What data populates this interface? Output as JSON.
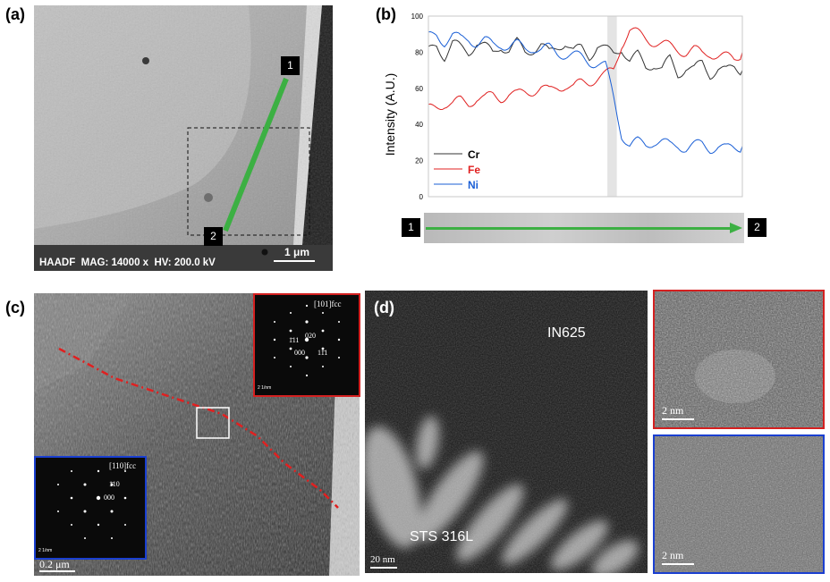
{
  "panel_a": {
    "letter": "(a)",
    "footer": "HAADF  MAG: 14000 x  HV: 200.0 kV",
    "scale": "1 μm",
    "marker_1": "1",
    "marker_2": "2"
  },
  "panel_b": {
    "letter": "(b)",
    "marker_1": "1",
    "marker_2": "2"
  },
  "chart_data": {
    "type": "line",
    "xlabel": "",
    "ylabel": "Intensity (A.U.)",
    "ylim": [
      0,
      100
    ],
    "yticks": [
      0,
      20,
      40,
      60,
      80,
      100
    ],
    "grid": false,
    "legend_position": "bottom-left",
    "x_points": 40,
    "interface_band": [
      0.57,
      0.6
    ],
    "series": [
      {
        "name": "Cr",
        "color": "#333333",
        "values": [
          80,
          84,
          78,
          85,
          82,
          80,
          86,
          83,
          79,
          84,
          81,
          85,
          80,
          82,
          84,
          79,
          83,
          86,
          80,
          82,
          78,
          84,
          81,
          79,
          83,
          75,
          78,
          72,
          74,
          70,
          76,
          68,
          72,
          70,
          74,
          68,
          71,
          69,
          72,
          70
        ]
      },
      {
        "name": "Fe",
        "color": "#e02020",
        "values": [
          48,
          50,
          52,
          51,
          53,
          52,
          55,
          54,
          56,
          55,
          57,
          56,
          58,
          59,
          60,
          58,
          61,
          62,
          60,
          63,
          64,
          66,
          67,
          70,
          85,
          92,
          90,
          88,
          86,
          84,
          83,
          82,
          80,
          81,
          79,
          80,
          78,
          77,
          76,
          80
        ]
      },
      {
        "name": "Ni",
        "color": "#1a5fd6",
        "values": [
          88,
          90,
          86,
          89,
          87,
          88,
          85,
          86,
          84,
          85,
          83,
          84,
          82,
          83,
          81,
          82,
          80,
          79,
          78,
          77,
          75,
          74,
          72,
          55,
          35,
          28,
          30,
          29,
          31,
          30,
          28,
          29,
          27,
          28,
          29,
          27,
          28,
          26,
          27,
          28
        ]
      }
    ]
  },
  "panel_c": {
    "letter": "(c)",
    "scale": "0.2 μm",
    "saed_red": {
      "zone": "[101]fcc",
      "l1": "020",
      "l2": "1̄11",
      "l3": "000",
      "l4": "11̄1",
      "scale": "2 1/nm"
    },
    "saed_blue": {
      "zone": "[110]fcc",
      "l1": "1̄10",
      "l2": "000",
      "scale": "2 1/nm"
    }
  },
  "panel_d": {
    "letter": "(d)",
    "label_top": "IN625",
    "label_bottom": "STS 316L",
    "scale": "20 nm",
    "inset_red_scale": "2 nm",
    "inset_blue_scale": "2 nm"
  },
  "colors": {
    "green_arrow": "#3cb043",
    "red_frame": "#d42020",
    "blue_frame": "#1a3fd0"
  }
}
